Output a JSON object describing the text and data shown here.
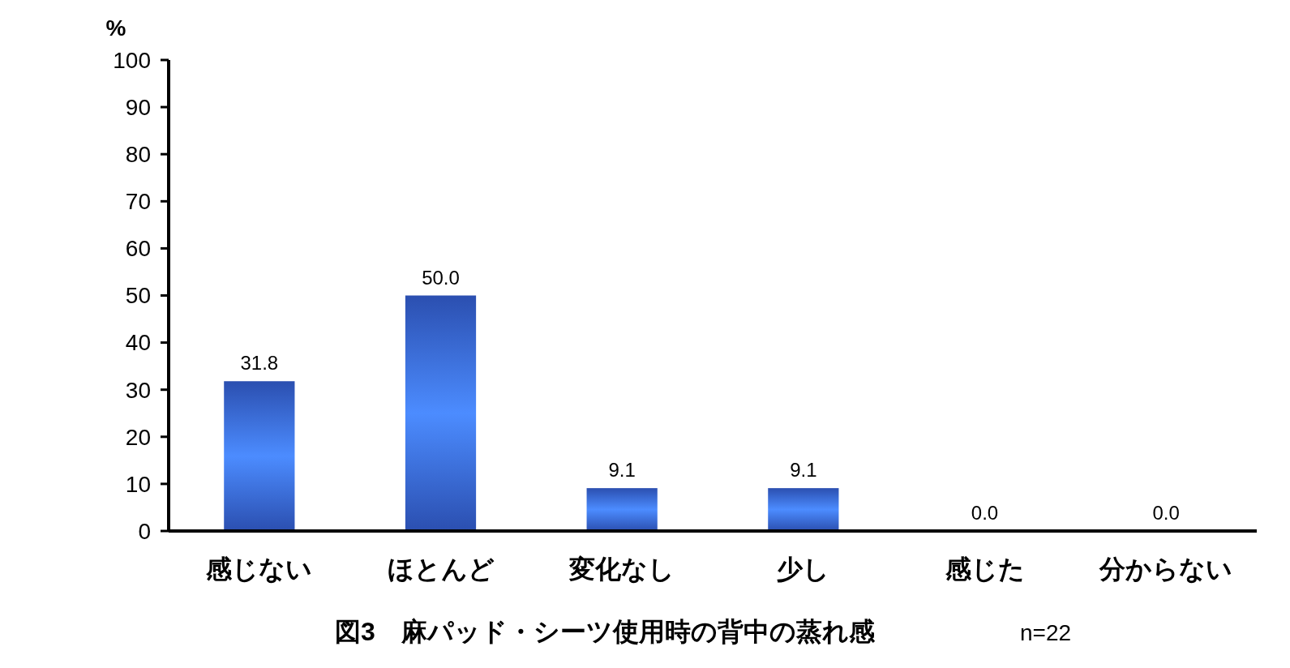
{
  "chart_data": {
    "type": "bar",
    "title": "図3　麻パッド・シーツ使用時の背中の蒸れ感",
    "ylabel": "%",
    "annotations": [
      "n=22"
    ],
    "categories": [
      "感じない",
      "ほとんど",
      "変化なし",
      "少し",
      "感じた",
      "分からない"
    ],
    "values": [
      31.8,
      50.0,
      9.1,
      9.1,
      0.0,
      0.0
    ],
    "value_labels": [
      "31.8",
      "50.0",
      "9.1",
      "9.1",
      "0.0",
      "0.0"
    ],
    "color": "#2b4fb0",
    "ylim": [
      0,
      100
    ],
    "yticks": [
      0,
      10,
      20,
      30,
      40,
      50,
      60,
      70,
      80,
      90,
      100
    ],
    "grid": false
  }
}
